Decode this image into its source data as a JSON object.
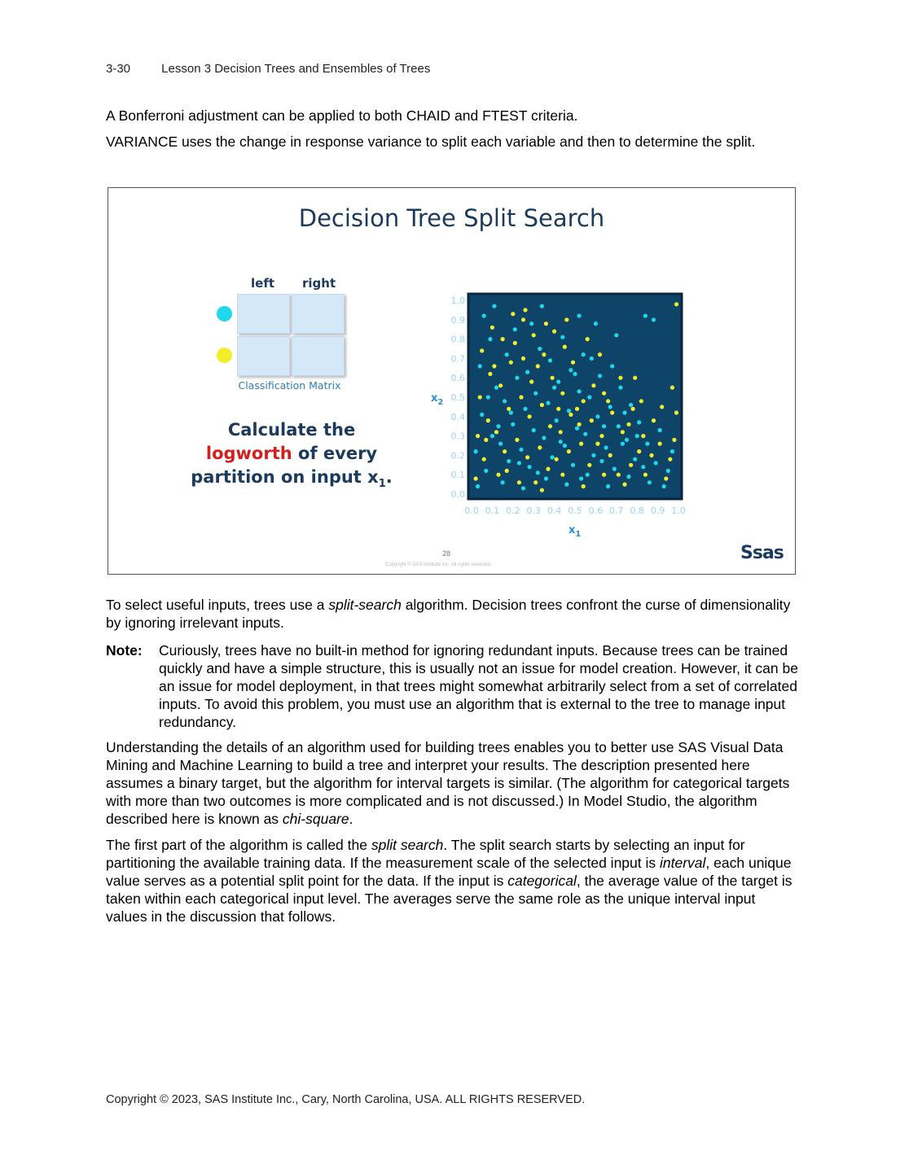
{
  "header": {
    "page": "3-30",
    "title": "Lesson 3  Decision Trees and Ensembles of Trees"
  },
  "paragraphs": {
    "p1": "A Bonferroni adjustment can be applied to both CHAID and FTEST criteria.",
    "p2": "VARIANCE uses the change in response variance to split each variable and then to determine the split.",
    "p3_before": "To select useful inputs, trees use a ",
    "p3_em": "split-search",
    "p3_after": " algorithm. Decision trees confront the curse of dimensionality by ignoring irrelevant inputs.",
    "note_label": "Note:",
    "note_text": "Curiously, trees have no built-in method for ignoring redundant inputs. Because trees can be trained quickly and have a simple structure, this is usually not an issue for model creation. However, it can be an issue for model deployment, in that trees might somewhat arbitrarily select from a set of correlated inputs. To avoid this problem, you must use an algorithm that is external to the tree to manage input redundancy.",
    "p4_before": "Understanding the details of an algorithm used for building trees enables you to better use SAS Visual Data Mining and Machine Learning to build a tree and interpret your results. The description presented here assumes a binary target, but the algorithm for interval targets is similar. (The algorithm for categorical targets with more than two outcomes is more complicated and is not discussed.) In Model Studio, the algorithm described here is known as ",
    "p4_em": "chi-square",
    "p4_after": ".",
    "p5_a": "The first part of the algorithm is called the ",
    "p5_em1": "split search",
    "p5_b": ". The split search starts by selecting an input for partitioning the available training data. If the measurement scale of the selected input is ",
    "p5_em2": "interval",
    "p5_c": ", each unique value serves as a potential split point for the data. If the input is ",
    "p5_em3": "categorical",
    "p5_d": ", the average value of the target is taken within each categorical input level. The averages serve the same role as the unique interval input values in the discussion that follows."
  },
  "slide": {
    "title": "Decision Tree Split Search",
    "matrix": {
      "col_left": "left",
      "col_right": "right",
      "label": "Classification Matrix"
    },
    "calc_line1": "Calculate the",
    "calc_red": "logworth",
    "calc_line2_rest": " of every",
    "calc_line3": "partition on input x",
    "calc_sub": "1",
    "calc_end": ".",
    "slide_number": "28",
    "copyright": "Copyright © SAS Institute Inc. All rights reserved.",
    "logo": "Ssas"
  },
  "colors": {
    "cyan": "#1fd8ec",
    "yellow": "#f2ee2a",
    "plot_bg": "#0d4468",
    "plot_border": "#0b2540",
    "title": "#1b3a5c",
    "red": "#d21f1f"
  },
  "chart_data": {
    "type": "scatter",
    "title": "",
    "xlabel": "x1",
    "ylabel": "x2",
    "xlim": [
      0.0,
      1.0
    ],
    "ylim": [
      0.0,
      1.0
    ],
    "x_ticks": [
      "0.0",
      "0.1",
      "0.2",
      "0.3",
      "0.4",
      "0.5",
      "0.6",
      "0.7",
      "0.8",
      "0.9",
      "1.0"
    ],
    "y_ticks": [
      "0.0",
      "0.1",
      "0.2",
      "0.3",
      "0.4",
      "0.5",
      "0.6",
      "0.7",
      "0.8",
      "0.9",
      "1.0"
    ],
    "grid": false,
    "series": [
      {
        "color": "#1fd8ec",
        "points": [
          [
            0.03,
            0.04
          ],
          [
            0.07,
            0.12
          ],
          [
            0.02,
            0.22
          ],
          [
            0.1,
            0.3
          ],
          [
            0.05,
            0.41
          ],
          [
            0.12,
            0.55
          ],
          [
            0.04,
            0.66
          ],
          [
            0.09,
            0.8
          ],
          [
            0.06,
            0.92
          ],
          [
            0.15,
            0.06
          ],
          [
            0.18,
            0.17
          ],
          [
            0.14,
            0.26
          ],
          [
            0.2,
            0.36
          ],
          [
            0.16,
            0.48
          ],
          [
            0.22,
            0.6
          ],
          [
            0.17,
            0.72
          ],
          [
            0.21,
            0.85
          ],
          [
            0.25,
            0.03
          ],
          [
            0.28,
            0.14
          ],
          [
            0.24,
            0.23
          ],
          [
            0.3,
            0.33
          ],
          [
            0.26,
            0.44
          ],
          [
            0.31,
            0.52
          ],
          [
            0.27,
            0.63
          ],
          [
            0.33,
            0.75
          ],
          [
            0.29,
            0.88
          ],
          [
            0.36,
            0.08
          ],
          [
            0.39,
            0.19
          ],
          [
            0.35,
            0.29
          ],
          [
            0.41,
            0.38
          ],
          [
            0.37,
            0.47
          ],
          [
            0.42,
            0.58
          ],
          [
            0.38,
            0.69
          ],
          [
            0.44,
            0.81
          ],
          [
            0.46,
            0.05
          ],
          [
            0.49,
            0.15
          ],
          [
            0.45,
            0.25
          ],
          [
            0.51,
            0.34
          ],
          [
            0.47,
            0.43
          ],
          [
            0.52,
            0.53
          ],
          [
            0.48,
            0.64
          ],
          [
            0.54,
            0.72
          ],
          [
            0.56,
            0.1
          ],
          [
            0.59,
            0.2
          ],
          [
            0.55,
            0.31
          ],
          [
            0.61,
            0.4
          ],
          [
            0.57,
            0.5
          ],
          [
            0.62,
            0.61
          ],
          [
            0.58,
            0.7
          ],
          [
            0.66,
            0.04
          ],
          [
            0.69,
            0.13
          ],
          [
            0.65,
            0.24
          ],
          [
            0.71,
            0.35
          ],
          [
            0.67,
            0.45
          ],
          [
            0.72,
            0.55
          ],
          [
            0.68,
            0.66
          ],
          [
            0.76,
            0.09
          ],
          [
            0.79,
            0.18
          ],
          [
            0.75,
            0.28
          ],
          [
            0.81,
            0.37
          ],
          [
            0.77,
            0.46
          ],
          [
            0.86,
            0.06
          ],
          [
            0.89,
            0.16
          ],
          [
            0.85,
            0.26
          ],
          [
            0.91,
            0.33
          ],
          [
            0.95,
            0.12
          ],
          [
            0.97,
            0.22
          ],
          [
            0.84,
            0.92
          ],
          [
            0.88,
            0.9
          ],
          [
            0.6,
            0.88
          ],
          [
            0.7,
            0.82
          ],
          [
            0.52,
            0.92
          ],
          [
            0.11,
            0.97
          ],
          [
            0.34,
            0.97
          ],
          [
            0.08,
            0.5
          ],
          [
            0.19,
            0.42
          ],
          [
            0.32,
            0.11
          ],
          [
            0.43,
            0.27
          ],
          [
            0.53,
            0.08
          ],
          [
            0.63,
            0.17
          ],
          [
            0.73,
            0.26
          ],
          [
            0.83,
            0.14
          ],
          [
            0.93,
            0.04
          ],
          [
            0.13,
            0.35
          ],
          [
            0.23,
            0.16
          ],
          [
            0.4,
            0.55
          ],
          [
            0.5,
            0.62
          ],
          [
            0.64,
            0.35
          ],
          [
            0.74,
            0.42
          ],
          [
            0.8,
            0.3
          ]
        ]
      },
      {
        "color": "#f2ee2a",
        "points": [
          [
            0.02,
            0.08
          ],
          [
            0.06,
            0.18
          ],
          [
            0.03,
            0.3
          ],
          [
            0.08,
            0.38
          ],
          [
            0.04,
            0.5
          ],
          [
            0.09,
            0.62
          ],
          [
            0.05,
            0.74
          ],
          [
            0.1,
            0.86
          ],
          [
            0.13,
            0.1
          ],
          [
            0.16,
            0.22
          ],
          [
            0.12,
            0.32
          ],
          [
            0.18,
            0.44
          ],
          [
            0.14,
            0.56
          ],
          [
            0.19,
            0.68
          ],
          [
            0.15,
            0.8
          ],
          [
            0.2,
            0.93
          ],
          [
            0.23,
            0.06
          ],
          [
            0.27,
            0.19
          ],
          [
            0.22,
            0.28
          ],
          [
            0.28,
            0.4
          ],
          [
            0.24,
            0.5
          ],
          [
            0.29,
            0.58
          ],
          [
            0.25,
            0.7
          ],
          [
            0.3,
            0.82
          ],
          [
            0.26,
            0.95
          ],
          [
            0.34,
            0.02
          ],
          [
            0.37,
            0.13
          ],
          [
            0.33,
            0.24
          ],
          [
            0.38,
            0.35
          ],
          [
            0.34,
            0.46
          ],
          [
            0.39,
            0.6
          ],
          [
            0.35,
            0.72
          ],
          [
            0.4,
            0.84
          ],
          [
            0.44,
            0.1
          ],
          [
            0.47,
            0.22
          ],
          [
            0.43,
            0.32
          ],
          [
            0.48,
            0.41
          ],
          [
            0.44,
            0.52
          ],
          [
            0.49,
            0.68
          ],
          [
            0.54,
            0.04
          ],
          [
            0.57,
            0.15
          ],
          [
            0.53,
            0.26
          ],
          [
            0.58,
            0.38
          ],
          [
            0.54,
            0.48
          ],
          [
            0.59,
            0.56
          ],
          [
            0.64,
            0.1
          ],
          [
            0.67,
            0.2
          ],
          [
            0.63,
            0.3
          ],
          [
            0.68,
            0.42
          ],
          [
            0.64,
            0.52
          ],
          [
            0.74,
            0.05
          ],
          [
            0.77,
            0.15
          ],
          [
            0.73,
            0.32
          ],
          [
            0.78,
            0.44
          ],
          [
            0.84,
            0.1
          ],
          [
            0.87,
            0.2
          ],
          [
            0.83,
            0.3
          ],
          [
            0.88,
            0.38
          ],
          [
            0.94,
            0.08
          ],
          [
            0.96,
            0.18
          ],
          [
            0.98,
            0.28
          ],
          [
            0.99,
            0.42
          ],
          [
            0.97,
            0.55
          ],
          [
            0.92,
            0.45
          ],
          [
            0.82,
            0.48
          ],
          [
            0.72,
            0.6
          ],
          [
            0.62,
            0.72
          ],
          [
            0.56,
            0.8
          ],
          [
            0.46,
            0.9
          ],
          [
            0.36,
            0.88
          ],
          [
            0.21,
            0.78
          ],
          [
            0.11,
            0.66
          ],
          [
            0.07,
            0.28
          ],
          [
            0.17,
            0.12
          ],
          [
            0.31,
            0.06
          ],
          [
            0.41,
            0.18
          ],
          [
            0.51,
            0.44
          ],
          [
            0.61,
            0.26
          ],
          [
            0.71,
            0.1
          ],
          [
            0.81,
            0.22
          ],
          [
            0.91,
            0.26
          ],
          [
            0.99,
            0.98
          ],
          [
            0.79,
            0.6
          ],
          [
            0.45,
            0.76
          ],
          [
            0.25,
            0.9
          ],
          [
            0.32,
            0.66
          ],
          [
            0.42,
            0.44
          ],
          [
            0.52,
            0.36
          ],
          [
            0.66,
            0.48
          ],
          [
            0.76,
            0.36
          ]
        ]
      }
    ]
  }
}
